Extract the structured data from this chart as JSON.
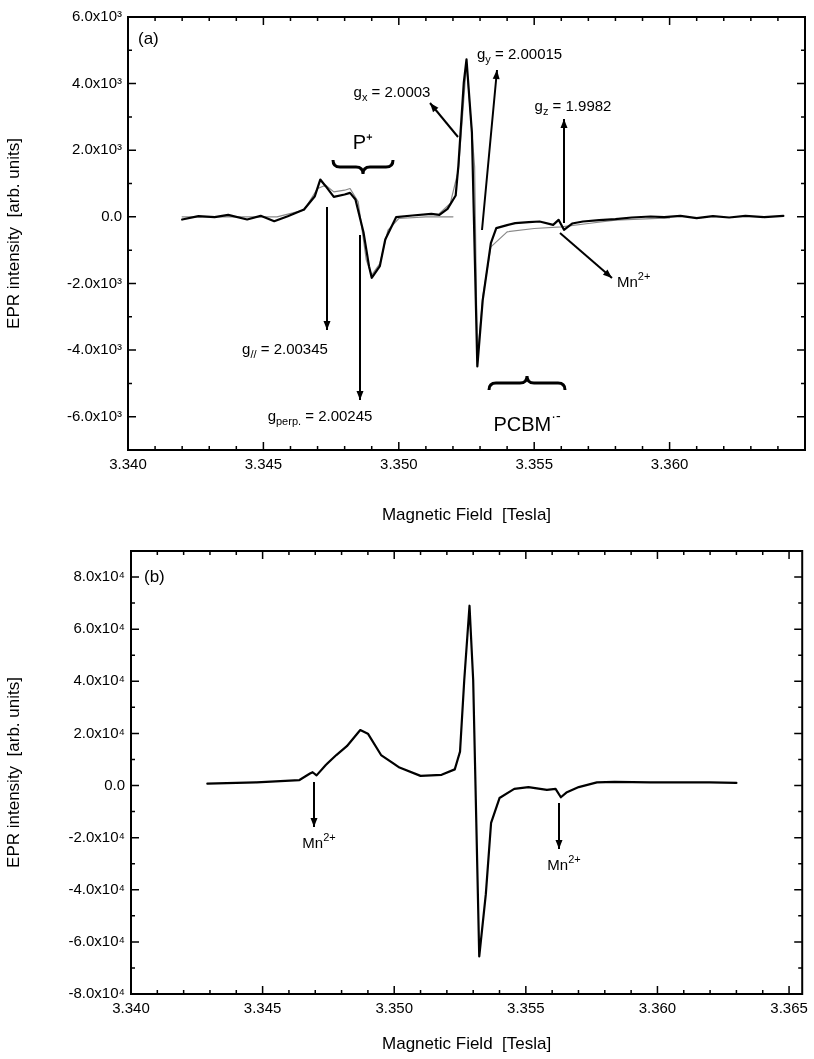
{
  "chart_data": [
    {
      "type": "line",
      "xlabel": "Magnetic Field  [Tesla]",
      "ylabel": "EPR intensity  [arb. units]",
      "marker": "none",
      "legend": false,
      "xlim": [
        3.34,
        3.365
      ],
      "ylim": [
        -7000,
        6000
      ],
      "xticks": [
        {
          "value": 3.34,
          "label": "3.340"
        },
        {
          "value": 3.341,
          "label": null
        },
        {
          "value": 3.342,
          "label": null
        },
        {
          "value": 3.343,
          "label": null
        },
        {
          "value": 3.344,
          "label": null
        },
        3.345,
        {
          "value": 3.346,
          "label": null
        },
        {
          "value": 3.347,
          "label": null
        },
        {
          "value": 3.348,
          "label": null
        },
        {
          "value": 3.349,
          "label": null
        },
        {
          "value": 3.35,
          "label": "3.350"
        },
        {
          "value": 3.351,
          "label": null
        },
        {
          "value": 3.352,
          "label": null
        },
        {
          "value": 3.353,
          "label": null
        },
        {
          "value": 3.354,
          "label": null
        },
        3.355,
        {
          "value": 3.356,
          "label": null
        },
        {
          "value": 3.357,
          "label": null
        },
        {
          "value": 3.358,
          "label": null
        },
        {
          "value": 3.359,
          "label": null
        },
        {
          "value": 3.36,
          "label": "3.360"
        },
        {
          "value": 3.361,
          "label": null
        },
        {
          "value": 3.362,
          "label": null
        },
        {
          "value": 3.363,
          "label": null
        },
        {
          "value": 3.364,
          "label": null
        },
        {
          "value": 3.365,
          "label": null
        }
      ],
      "yticks": [
        {
          "value": -7000,
          "label": null
        },
        {
          "value": -6000,
          "label": "-6.0x10³"
        },
        {
          "value": -5000,
          "label": null
        },
        {
          "value": -4000,
          "label": "-4.0x10³"
        },
        {
          "value": -3000,
          "label": null
        },
        {
          "value": -2000,
          "label": "-2.0x10³"
        },
        {
          "value": -1000,
          "label": null
        },
        {
          "value": 0,
          "label": "0.0"
        },
        {
          "value": 1000,
          "label": null
        },
        {
          "value": 2000,
          "label": "2.0x10³"
        },
        {
          "value": 3000,
          "label": null
        },
        {
          "value": 4000,
          "label": "4.0x10³"
        },
        {
          "value": 5000,
          "label": null
        },
        {
          "value": 6000,
          "label": "6.0x10³"
        }
      ],
      "series": [
        {
          "color": "#000000",
          "x": [
            3.342,
            3.3426,
            3.3432,
            3.3437,
            3.3444,
            3.3449,
            3.3454,
            3.3459,
            3.3465,
            3.3469,
            3.3471,
            3.3473,
            3.3476,
            3.348,
            3.3482,
            3.3484,
            3.3487,
            3.3489,
            3.349,
            3.3493,
            3.3495,
            3.3499,
            3.3505,
            3.3512,
            3.3515,
            3.3518,
            3.3521,
            3.3522,
            3.3524,
            3.3525,
            3.3527,
            3.3529,
            3.3531,
            3.3534,
            3.3536,
            3.354,
            3.3543,
            3.3548,
            3.3552,
            3.3557,
            3.3559,
            3.3561,
            3.3564,
            3.3568,
            3.3574,
            3.358,
            3.3586,
            3.3593,
            3.3598,
            3.3604,
            3.361,
            3.3616,
            3.3622,
            3.3628,
            3.3635,
            3.3642
          ],
          "values": [
            -80,
            20,
            -10,
            60,
            -80,
            30,
            -130,
            20,
            220,
            620,
            1120,
            920,
            600,
            670,
            720,
            520,
            -480,
            -1480,
            -1830,
            -1480,
            -680,
            -10,
            40,
            90,
            60,
            240,
            640,
            1530,
            4030,
            4730,
            2530,
            -4490,
            -2490,
            -790,
            -340,
            -250,
            -190,
            -160,
            -140,
            -240,
            -90,
            -390,
            -200,
            -140,
            -100,
            -70,
            -20,
            10,
            -10,
            30,
            -40,
            20,
            -20,
            30,
            -10,
            30
          ]
        },
        {
          "color": "#888888",
          "x": [
            3.342,
            3.3455,
            3.3465,
            3.347,
            3.3473,
            3.3476,
            3.348,
            3.3482,
            3.3485,
            3.3488,
            3.349,
            3.3493,
            3.3496,
            3.35,
            3.351,
            3.352
          ],
          "values": [
            0,
            0,
            200,
            850,
            950,
            750,
            800,
            850,
            450,
            -1300,
            -1750,
            -1400,
            -400,
            -50,
            0,
            0
          ]
        },
        {
          "color": "#888888",
          "x": [
            3.3515,
            3.3519,
            3.3522,
            3.3525,
            3.3528,
            3.3529,
            3.3531,
            3.3534,
            3.354,
            3.355,
            3.356,
            3.357,
            3.358,
            3.36
          ],
          "values": [
            100,
            400,
            1400,
            4600,
            1500,
            -4300,
            -2400,
            -900,
            -450,
            -350,
            -300,
            -200,
            -100,
            -30
          ]
        }
      ],
      "annotations": [
        "(a)",
        "P⁺",
        "g$_{x}$ = 2.0003",
        "g$_{y}$ = 2.00015",
        "g$_{z}$ = 1.9982",
        "Mn$^{2+}$",
        "g$_{//}$ = 2.00345",
        "g$_{perp.}$ = 2.00245",
        "PCBM$^{·-}$"
      ]
    },
    {
      "type": "line",
      "xlabel": "Magnetic Field  [Tesla]",
      "ylabel": "EPR intensity  [arb. units]",
      "marker": "none",
      "legend": false,
      "xlim": [
        3.34,
        3.3655
      ],
      "ylim": [
        -80000,
        90000
      ],
      "xticks": [
        {
          "value": 3.34,
          "label": "3.340"
        },
        {
          "value": 3.341,
          "label": null
        },
        {
          "value": 3.342,
          "label": null
        },
        {
          "value": 3.343,
          "label": null
        },
        {
          "value": 3.344,
          "label": null
        },
        3.345,
        {
          "value": 3.346,
          "label": null
        },
        {
          "value": 3.347,
          "label": null
        },
        {
          "value": 3.348,
          "label": null
        },
        {
          "value": 3.349,
          "label": null
        },
        {
          "value": 3.35,
          "label": "3.350"
        },
        {
          "value": 3.351,
          "label": null
        },
        {
          "value": 3.352,
          "label": null
        },
        {
          "value": 3.353,
          "label": null
        },
        {
          "value": 3.354,
          "label": null
        },
        3.355,
        {
          "value": 3.356,
          "label": null
        },
        {
          "value": 3.357,
          "label": null
        },
        {
          "value": 3.358,
          "label": null
        },
        {
          "value": 3.359,
          "label": null
        },
        {
          "value": 3.36,
          "label": "3.360"
        },
        {
          "value": 3.361,
          "label": null
        },
        {
          "value": 3.362,
          "label": null
        },
        {
          "value": 3.363,
          "label": null
        },
        {
          "value": 3.364,
          "label": null
        },
        3.365
      ],
      "yticks": [
        {
          "value": -80000,
          "label": "-8.0x10⁴"
        },
        {
          "value": -70000,
          "label": null
        },
        {
          "value": -60000,
          "label": "-6.0x10⁴"
        },
        {
          "value": -50000,
          "label": null
        },
        {
          "value": -40000,
          "label": "-4.0x10⁴"
        },
        {
          "value": -30000,
          "label": null
        },
        {
          "value": -20000,
          "label": "-2.0x10⁴"
        },
        {
          "value": -10000,
          "label": null
        },
        {
          "value": 0,
          "label": "0.0"
        },
        {
          "value": 10000,
          "label": null
        },
        {
          "value": 20000,
          "label": "2.0x10⁴"
        },
        {
          "value": 30000,
          "label": null
        },
        {
          "value": 40000,
          "label": "4.0x10⁴"
        },
        {
          "value": 50000,
          "label": null
        },
        {
          "value": 60000,
          "label": "6.0x10⁴"
        },
        {
          "value": 70000,
          "label": null
        },
        {
          "value": 80000,
          "label": "8.0x10⁴"
        },
        {
          "value": 90000,
          "label": null
        }
      ],
      "series": [
        {
          "color": "#000000",
          "x": [
            3.3429,
            3.34477,
            3.3464,
            3.3468,
            3.3469,
            3.34705,
            3.3474,
            3.3478,
            3.3482,
            3.34871,
            3.349,
            3.3495,
            3.3502,
            3.351,
            3.3518,
            3.3523,
            3.3525,
            3.35266,
            3.35286,
            3.353,
            3.35323,
            3.35348,
            3.35368,
            3.354,
            3.35456,
            3.3551,
            3.3558,
            3.35613,
            3.35633,
            3.35654,
            3.35701,
            3.3577,
            3.35837,
            3.35973,
            3.36198,
            3.363
          ],
          "values": [
            700,
            1200,
            2100,
            4600,
            5100,
            3900,
            7900,
            11700,
            15100,
            21300,
            19900,
            11700,
            6900,
            3700,
            4100,
            6200,
            13000,
            40400,
            69000,
            40400,
            -65600,
            -41700,
            -14300,
            -4800,
            -1300,
            -600,
            -1700,
            -1300,
            -4500,
            -2700,
            -600,
            1200,
            1400,
            1200,
            1200,
            1000
          ]
        }
      ],
      "annotations": [
        "(b)",
        "Mn$^{2+}$",
        "Mn$^{2+}$"
      ]
    }
  ]
}
